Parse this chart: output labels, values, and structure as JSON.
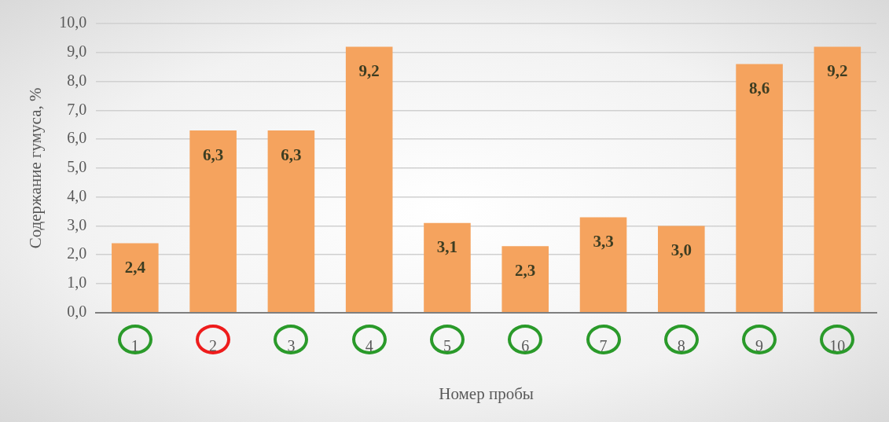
{
  "chart_data": {
    "type": "bar",
    "xlabel": "Номер пробы",
    "ylabel": "Содержание гумуса, %",
    "categories": [
      "1",
      "2",
      "3",
      "4",
      "5",
      "6",
      "7",
      "8",
      "9",
      "10"
    ],
    "values": [
      2.4,
      6.3,
      6.3,
      9.2,
      3.1,
      2.3,
      3.3,
      3.0,
      8.6,
      9.2
    ],
    "value_labels": [
      "2,4",
      "6,3",
      "6,3",
      "9,2",
      "3,1",
      "2,3",
      "3,3",
      "3,0",
      "8,6",
      "9,2"
    ],
    "color": "#f5a35e",
    "ylim": [
      0,
      10
    ],
    "yticks": [
      {
        "value": 0,
        "label": "0,0"
      },
      {
        "value": 1,
        "label": "1,0"
      },
      {
        "value": 2,
        "label": "2,0"
      },
      {
        "value": 3,
        "label": "3,0"
      },
      {
        "value": 4,
        "label": "4,0"
      },
      {
        "value": 5,
        "label": "5,0"
      },
      {
        "value": 6,
        "label": "6,0"
      },
      {
        "value": 7,
        "label": "7,0"
      },
      {
        "value": 8,
        "label": "8,0"
      },
      {
        "value": 9,
        "label": "9,0"
      },
      {
        "value": 10,
        "label": "10,0"
      }
    ],
    "grid": "y"
  }
}
